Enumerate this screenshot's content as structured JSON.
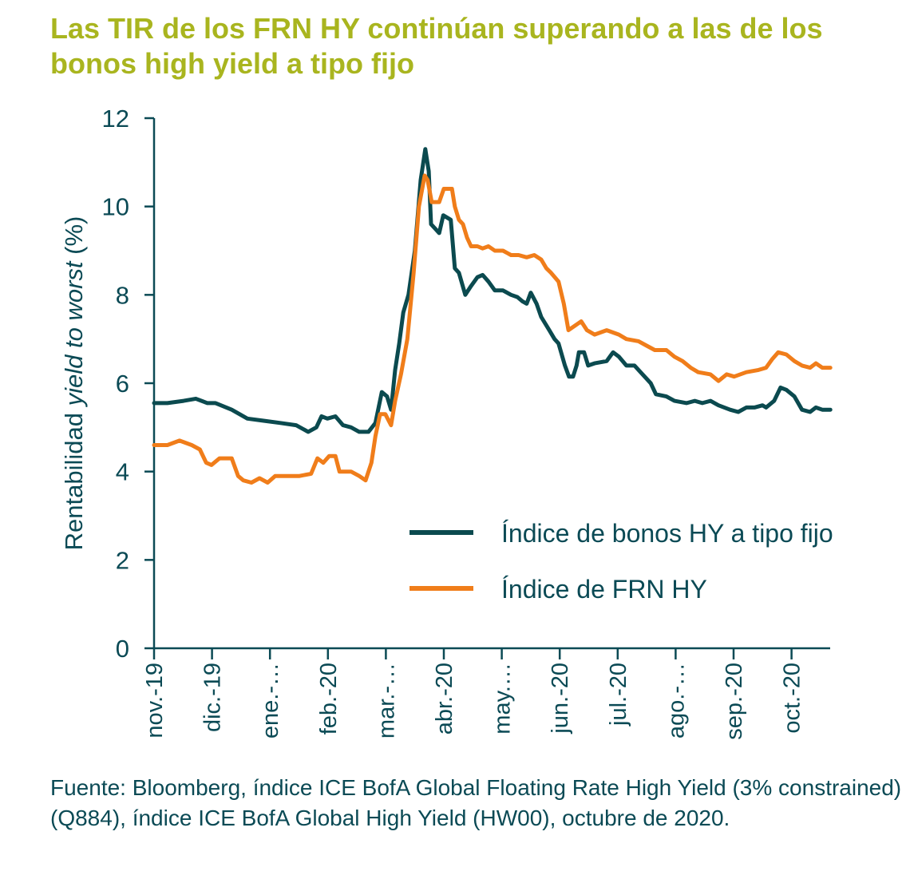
{
  "title": "Las TIR de los FRN HY continúan superando a las de los bonos high yield a tipo fijo",
  "source": "Fuente: Bloomberg, índice ICE BofA Global Floating Rate High Yield (3% constrained) (Q884), índice ICE BofA Global High Yield (HW00), octubre de 2020.",
  "chart_data": {
    "type": "line",
    "title": "Las TIR de los FRN HY continúan superando a las de los bonos high yield a tipo fijo",
    "ylabel_prefix": "Rentabilidad ",
    "ylabel_italic": "yield to worst",
    "ylabel_suffix": " (%)",
    "xlabel": "",
    "ylim": [
      0,
      12
    ],
    "yticks": [
      "0",
      "2",
      "4",
      "6",
      "8",
      "10",
      "12"
    ],
    "x_unit": "months since nov.-19",
    "xlim": [
      0,
      11.67
    ],
    "xticks": [
      "nov.-19",
      "dic.-19",
      "ene.-…",
      "feb.-20",
      "mar.-…",
      "abr.-20",
      "may.…",
      "jun.-20",
      "jul.-20",
      "ago.-…",
      "sep.-20",
      "oct.-20"
    ],
    "legend_position": "center-right",
    "grid": false,
    "series": [
      {
        "name": "Índice de bonos HY a tipo fijo",
        "color": "#0b4a4f",
        "points": [
          [
            0,
            5.55
          ],
          [
            0.23,
            5.55
          ],
          [
            0.51,
            5.6
          ],
          [
            0.72,
            5.65
          ],
          [
            0.92,
            5.55
          ],
          [
            1.06,
            5.55
          ],
          [
            1.34,
            5.4
          ],
          [
            1.61,
            5.2
          ],
          [
            1.89,
            5.15
          ],
          [
            2.18,
            5.1
          ],
          [
            2.45,
            5.05
          ],
          [
            2.66,
            4.9
          ],
          [
            2.8,
            5.0
          ],
          [
            2.89,
            5.25
          ],
          [
            2.99,
            5.2
          ],
          [
            3.13,
            5.25
          ],
          [
            3.26,
            5.05
          ],
          [
            3.4,
            5.0
          ],
          [
            3.54,
            4.9
          ],
          [
            3.7,
            4.9
          ],
          [
            3.82,
            5.1
          ],
          [
            3.93,
            5.8
          ],
          [
            4.02,
            5.7
          ],
          [
            4.09,
            5.4
          ],
          [
            4.16,
            6.3
          ],
          [
            4.23,
            6.9
          ],
          [
            4.3,
            7.6
          ],
          [
            4.39,
            8.0
          ],
          [
            4.5,
            9.0
          ],
          [
            4.6,
            10.6
          ],
          [
            4.68,
            11.3
          ],
          [
            4.74,
            10.8
          ],
          [
            4.78,
            9.6
          ],
          [
            4.85,
            9.5
          ],
          [
            4.92,
            9.4
          ],
          [
            4.99,
            9.8
          ],
          [
            5.12,
            9.7
          ],
          [
            5.19,
            8.6
          ],
          [
            5.26,
            8.5
          ],
          [
            5.37,
            8.0
          ],
          [
            5.47,
            8.2
          ],
          [
            5.58,
            8.4
          ],
          [
            5.67,
            8.45
          ],
          [
            5.77,
            8.3
          ],
          [
            5.88,
            8.1
          ],
          [
            6.02,
            8.1
          ],
          [
            6.16,
            8.0
          ],
          [
            6.27,
            7.95
          ],
          [
            6.36,
            7.85
          ],
          [
            6.43,
            7.8
          ],
          [
            6.5,
            8.05
          ],
          [
            6.6,
            7.8
          ],
          [
            6.68,
            7.5
          ],
          [
            6.82,
            7.2
          ],
          [
            6.91,
            7.0
          ],
          [
            6.98,
            6.9
          ],
          [
            7.09,
            6.4
          ],
          [
            7.16,
            6.15
          ],
          [
            7.23,
            6.15
          ],
          [
            7.29,
            6.4
          ],
          [
            7.33,
            6.7
          ],
          [
            7.42,
            6.7
          ],
          [
            7.49,
            6.4
          ],
          [
            7.6,
            6.45
          ],
          [
            7.81,
            6.5
          ],
          [
            7.92,
            6.7
          ],
          [
            8.02,
            6.6
          ],
          [
            8.15,
            6.4
          ],
          [
            8.29,
            6.4
          ],
          [
            8.43,
            6.2
          ],
          [
            8.57,
            6.0
          ],
          [
            8.66,
            5.75
          ],
          [
            8.84,
            5.7
          ],
          [
            8.98,
            5.6
          ],
          [
            9.19,
            5.55
          ],
          [
            9.33,
            5.6
          ],
          [
            9.46,
            5.55
          ],
          [
            9.6,
            5.6
          ],
          [
            9.74,
            5.5
          ],
          [
            9.94,
            5.4
          ],
          [
            10.08,
            5.35
          ],
          [
            10.22,
            5.45
          ],
          [
            10.36,
            5.45
          ],
          [
            10.5,
            5.5
          ],
          [
            10.56,
            5.45
          ],
          [
            10.7,
            5.6
          ],
          [
            10.81,
            5.9
          ],
          [
            10.91,
            5.85
          ],
          [
            11.05,
            5.7
          ],
          [
            11.18,
            5.4
          ],
          [
            11.32,
            5.35
          ],
          [
            11.42,
            5.45
          ],
          [
            11.53,
            5.4
          ],
          [
            11.67,
            5.4
          ]
        ]
      },
      {
        "name": "Índice de FRN HY",
        "color": "#f07d1a",
        "points": [
          [
            0,
            4.6
          ],
          [
            0.23,
            4.6
          ],
          [
            0.44,
            4.7
          ],
          [
            0.65,
            4.6
          ],
          [
            0.79,
            4.5
          ],
          [
            0.9,
            4.2
          ],
          [
            0.99,
            4.15
          ],
          [
            1.13,
            4.3
          ],
          [
            1.34,
            4.3
          ],
          [
            1.45,
            3.9
          ],
          [
            1.54,
            3.8
          ],
          [
            1.68,
            3.75
          ],
          [
            1.82,
            3.85
          ],
          [
            1.96,
            3.75
          ],
          [
            2.09,
            3.9
          ],
          [
            2.3,
            3.9
          ],
          [
            2.51,
            3.9
          ],
          [
            2.71,
            3.95
          ],
          [
            2.82,
            4.3
          ],
          [
            2.92,
            4.2
          ],
          [
            3.02,
            4.35
          ],
          [
            3.13,
            4.35
          ],
          [
            3.2,
            4.0
          ],
          [
            3.4,
            4.0
          ],
          [
            3.54,
            3.9
          ],
          [
            3.65,
            3.8
          ],
          [
            3.75,
            4.2
          ],
          [
            3.82,
            4.8
          ],
          [
            3.9,
            5.3
          ],
          [
            3.99,
            5.3
          ],
          [
            4.09,
            5.05
          ],
          [
            4.16,
            5.6
          ],
          [
            4.26,
            6.2
          ],
          [
            4.37,
            7.0
          ],
          [
            4.48,
            8.5
          ],
          [
            4.57,
            10.0
          ],
          [
            4.67,
            10.7
          ],
          [
            4.72,
            10.6
          ],
          [
            4.79,
            10.1
          ],
          [
            4.92,
            10.1
          ],
          [
            5.0,
            10.4
          ],
          [
            5.14,
            10.4
          ],
          [
            5.19,
            10.0
          ],
          [
            5.26,
            9.7
          ],
          [
            5.33,
            9.6
          ],
          [
            5.4,
            9.3
          ],
          [
            5.47,
            9.1
          ],
          [
            5.58,
            9.1
          ],
          [
            5.67,
            9.05
          ],
          [
            5.77,
            9.1
          ],
          [
            5.88,
            9.0
          ],
          [
            6.02,
            9.0
          ],
          [
            6.16,
            8.9
          ],
          [
            6.29,
            8.9
          ],
          [
            6.43,
            8.85
          ],
          [
            6.56,
            8.9
          ],
          [
            6.68,
            8.8
          ],
          [
            6.77,
            8.6
          ],
          [
            6.85,
            8.5
          ],
          [
            6.98,
            8.3
          ],
          [
            7.07,
            7.8
          ],
          [
            7.15,
            7.2
          ],
          [
            7.26,
            7.3
          ],
          [
            7.37,
            7.4
          ],
          [
            7.47,
            7.2
          ],
          [
            7.6,
            7.1
          ],
          [
            7.81,
            7.2
          ],
          [
            8.02,
            7.1
          ],
          [
            8.15,
            7.0
          ],
          [
            8.36,
            6.95
          ],
          [
            8.5,
            6.85
          ],
          [
            8.64,
            6.75
          ],
          [
            8.84,
            6.75
          ],
          [
            8.98,
            6.6
          ],
          [
            9.12,
            6.5
          ],
          [
            9.26,
            6.35
          ],
          [
            9.39,
            6.25
          ],
          [
            9.6,
            6.2
          ],
          [
            9.74,
            6.05
          ],
          [
            9.88,
            6.2
          ],
          [
            10.01,
            6.15
          ],
          [
            10.22,
            6.25
          ],
          [
            10.43,
            6.3
          ],
          [
            10.56,
            6.35
          ],
          [
            10.67,
            6.55
          ],
          [
            10.77,
            6.7
          ],
          [
            10.91,
            6.65
          ],
          [
            11.05,
            6.5
          ],
          [
            11.18,
            6.4
          ],
          [
            11.32,
            6.35
          ],
          [
            11.42,
            6.45
          ],
          [
            11.53,
            6.35
          ],
          [
            11.67,
            6.35
          ]
        ]
      }
    ]
  }
}
